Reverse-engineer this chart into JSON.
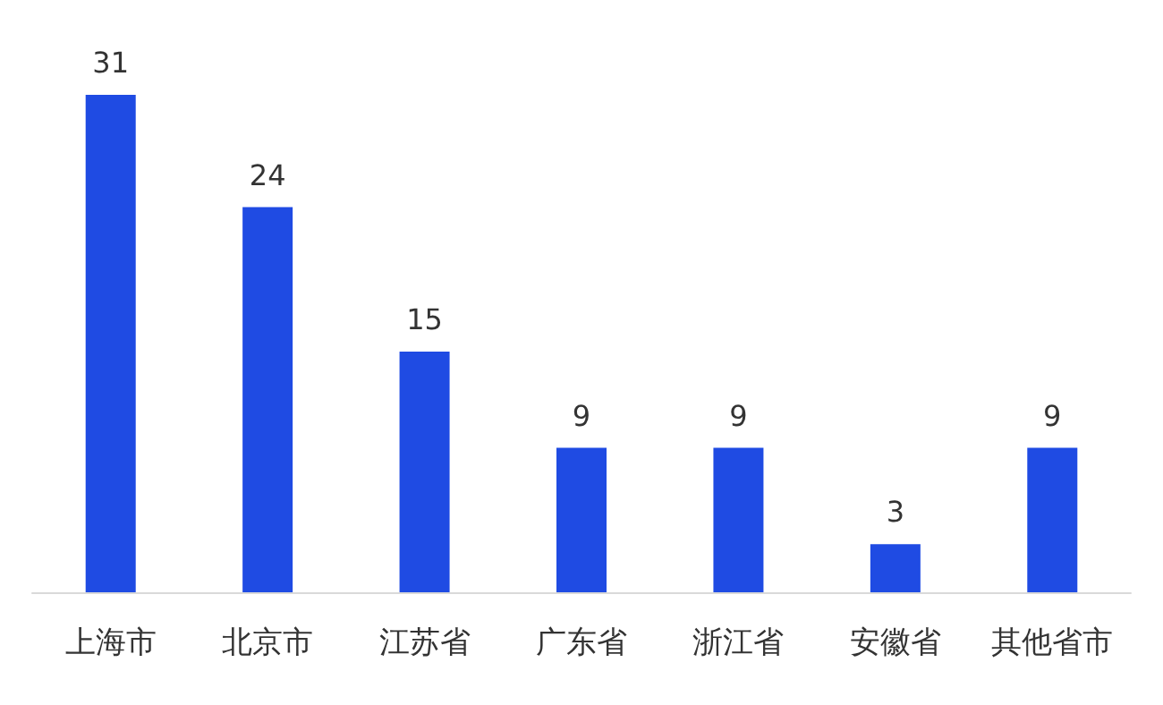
{
  "chart_data": {
    "type": "bar",
    "categories": [
      "上海市",
      "北京市",
      "江苏省",
      "广东省",
      "浙江省",
      "安徽省",
      "其他省市"
    ],
    "values": [
      31,
      24,
      15,
      9,
      9,
      3,
      9
    ],
    "color": "#1f4be3",
    "data_labels": true
  }
}
